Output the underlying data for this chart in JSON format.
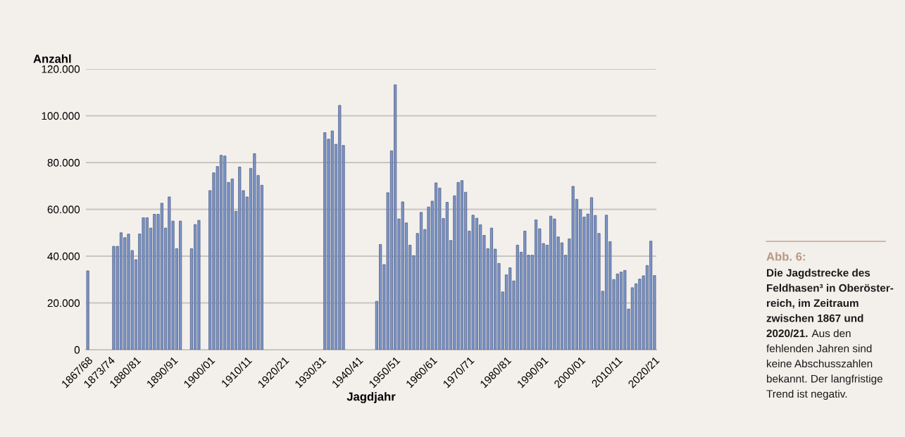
{
  "chart_data": {
    "type": "bar",
    "xlabel": "Jagdjahr",
    "ylabel": "Anzahl",
    "categories": [
      "1867/68",
      null,
      null,
      null,
      null,
      null,
      "1873/74",
      null,
      null,
      null,
      null,
      null,
      null,
      "1880/81",
      null,
      null,
      null,
      null,
      null,
      null,
      null,
      null,
      null,
      "1890/91",
      null,
      null,
      null,
      null,
      null,
      null,
      null,
      null,
      null,
      "1900/01",
      null,
      null,
      null,
      null,
      null,
      null,
      null,
      null,
      null,
      "1910/11",
      null,
      null,
      null,
      null,
      null,
      null,
      null,
      null,
      null,
      "1920/21",
      null,
      null,
      null,
      null,
      null,
      null,
      null,
      null,
      null,
      "1930/31",
      null,
      null,
      null,
      null,
      null,
      null,
      null,
      null,
      null,
      "1940/41",
      null,
      null,
      null,
      null,
      null,
      null,
      null,
      null,
      null,
      "1950/51",
      null,
      null,
      null,
      null,
      null,
      null,
      null,
      null,
      null,
      "1960/61",
      null,
      null,
      null,
      null,
      null,
      null,
      null,
      null,
      null,
      "1970/71",
      null,
      null,
      null,
      null,
      null,
      null,
      null,
      null,
      null,
      "1980/81",
      null,
      null,
      null,
      null,
      null,
      null,
      null,
      null,
      null,
      "1990/91",
      null,
      null,
      null,
      null,
      null,
      null,
      null,
      null,
      null,
      "2000/01",
      null,
      null,
      null,
      null,
      null,
      null,
      null,
      null,
      null,
      "2010/11",
      null,
      null,
      null,
      null,
      null,
      null,
      null,
      null,
      null,
      "2020/21"
    ],
    "values": [
      33700,
      null,
      null,
      null,
      null,
      null,
      null,
      44200,
      44200,
      50000,
      47900,
      49400,
      42400,
      38500,
      49500,
      56400,
      56400,
      52000,
      57900,
      57900,
      62600,
      52000,
      65300,
      55000,
      43200,
      55000,
      null,
      null,
      43200,
      53500,
      55300,
      null,
      null,
      68000,
      75600,
      78300,
      83100,
      82800,
      71500,
      73000,
      59200,
      78100,
      68000,
      65300,
      77500,
      83800,
      74500,
      70300,
      null,
      null,
      null,
      null,
      null,
      null,
      null,
      null,
      null,
      null,
      null,
      null,
      null,
      null,
      null,
      null,
      92800,
      90000,
      93500,
      87800,
      104400,
      87300,
      null,
      null,
      null,
      null,
      null,
      null,
      null,
      null,
      20700,
      45000,
      36400,
      67100,
      85000,
      113200,
      55900,
      63200,
      54200,
      44700,
      40200,
      49700,
      58700,
      51400,
      61000,
      63500,
      71300,
      69100,
      56100,
      63000,
      46700,
      65800,
      71500,
      72300,
      67300,
      50700,
      57500,
      56200,
      53400,
      48900,
      43200,
      52000,
      43000,
      36900,
      24700,
      32000,
      35000,
      29400,
      44700,
      41700,
      50700,
      40400,
      40400,
      55500,
      51700,
      45400,
      44700,
      57100,
      55900,
      48200,
      45700,
      40400,
      47400,
      69800,
      64300,
      59900,
      56700,
      58000,
      65000,
      57400,
      49700,
      25000,
      57500,
      46200,
      30000,
      32400,
      33200,
      33900,
      17400,
      26500,
      28200,
      30200,
      31600,
      36000,
      46400,
      31700
    ],
    "color": "#7d96c8",
    "ylim": [
      0,
      120000
    ],
    "yticks": [
      {
        "value": 0,
        "label": "0"
      },
      {
        "value": 20000,
        "label": "20.000"
      },
      {
        "value": 40000,
        "label": "40.000"
      },
      {
        "value": 60000,
        "label": "60.000"
      },
      {
        "value": 80000,
        "label": "80.000"
      },
      {
        "value": 100000,
        "label": "100.000"
      },
      {
        "value": 120000,
        "label": "120.000"
      }
    ],
    "grid": "y",
    "annotations": [
      "Abb. 6:",
      "Die Jagdstrecke des\nFeldhasen³ in Oberöster-\nreich, im Zeitraum\nzwischen 1867 und\n2020/21.",
      "Aus den\nfehlenden Jahren sind\nkeine Abschusszahlen\nbekannt. Der langfristige\nTrend ist negativ."
    ]
  }
}
